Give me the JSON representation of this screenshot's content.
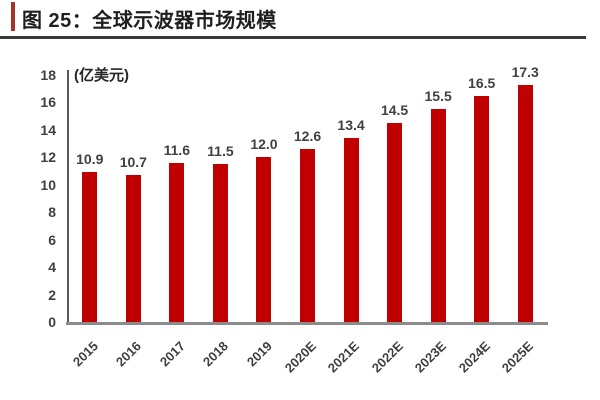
{
  "header": {
    "title": "图 25：全球示波器市场规模"
  },
  "chart_data": {
    "type": "bar",
    "title": "全球示波器市场规模",
    "unit_label": "(亿美元)",
    "categories": [
      "2015",
      "2016",
      "2017",
      "2018",
      "2019",
      "2020E",
      "2021E",
      "2022E",
      "2023E",
      "2024E",
      "2025E"
    ],
    "values": [
      10.9,
      10.7,
      11.6,
      11.5,
      12.0,
      12.6,
      13.4,
      14.5,
      15.5,
      16.5,
      17.3
    ],
    "xlabel": "",
    "ylabel": "(亿美元)",
    "ylim": [
      0,
      18
    ],
    "ytick_step": 2,
    "grid": false,
    "legend": "none",
    "data_labels": "outside-end, one decimal"
  },
  "colors": {
    "bar": "#c00000",
    "accent_bar": "#a93226",
    "title_rule": "#3a3a3a",
    "y_axis_line": "#595959",
    "x_axis_line": "#8c8c8c",
    "tick_label": "#404040",
    "title_text": "#1f1f1f"
  }
}
